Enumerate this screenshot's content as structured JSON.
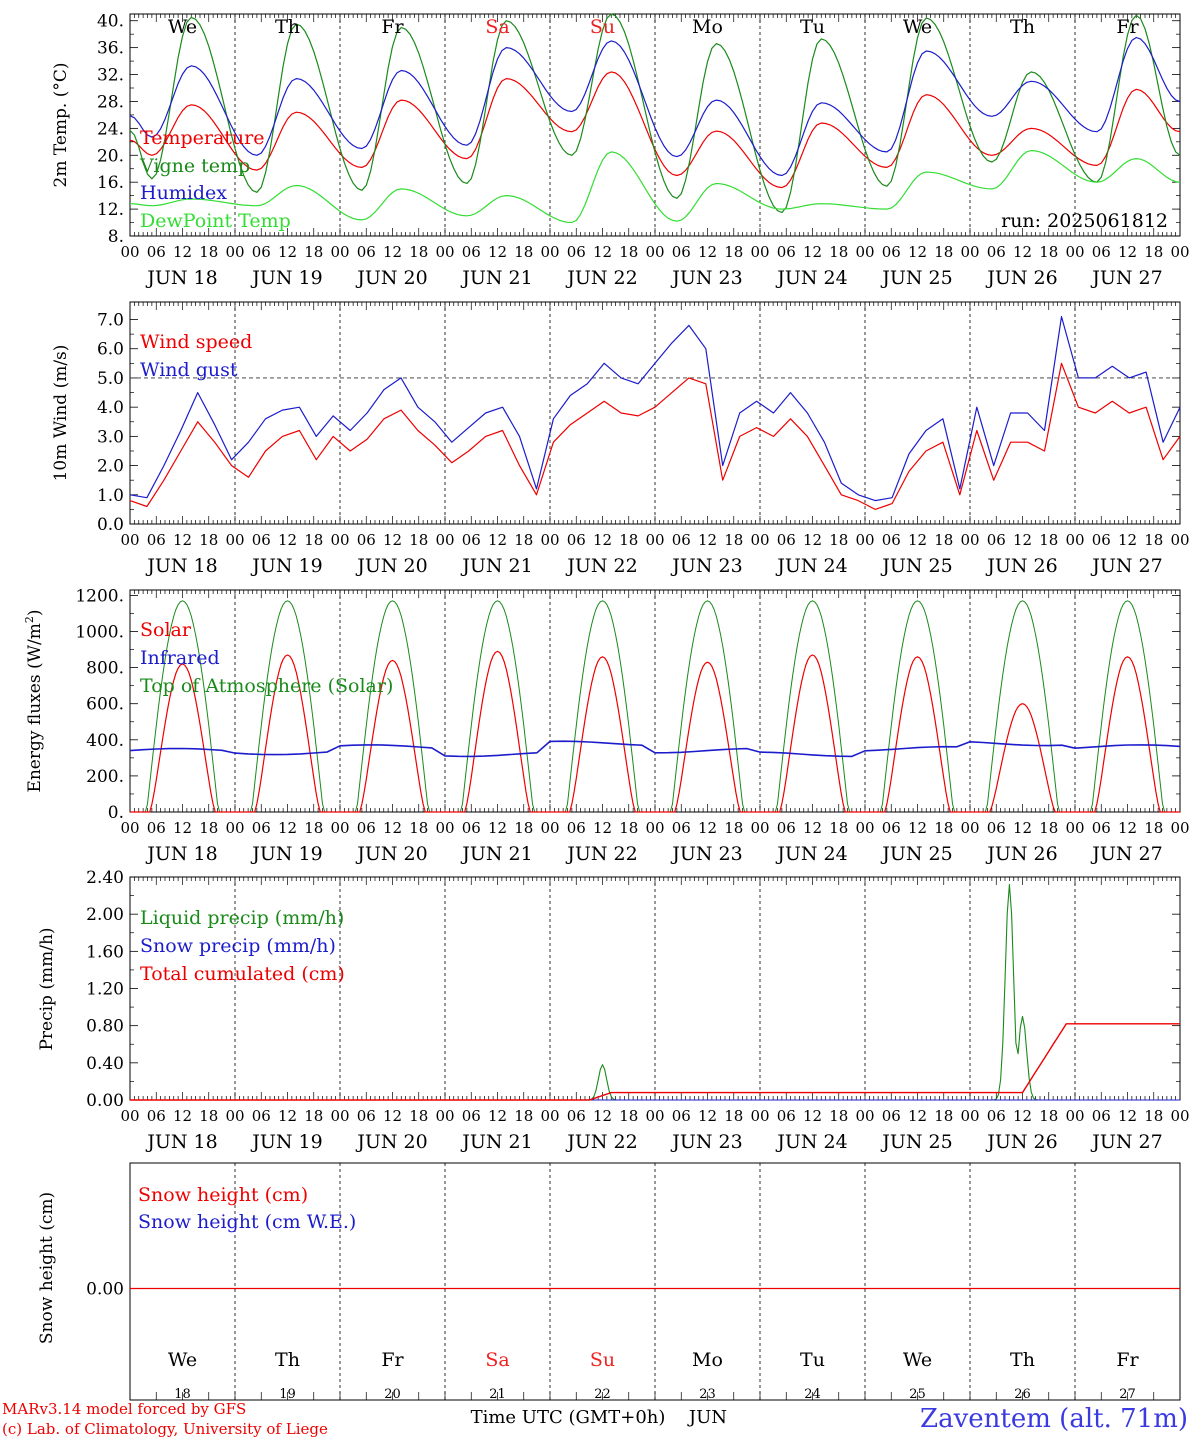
{
  "panels": {
    "temp": {
      "ylabel": "2m Temp. (°C)",
      "yticks": [
        "8.",
        "12.",
        "16.",
        "20.",
        "24.",
        "28.",
        "32.",
        "36.",
        "40."
      ],
      "ylim": [
        8,
        41
      ],
      "legend": [
        "Temperature",
        "Vigne temp",
        "Humidex",
        "DewPoint Temp"
      ],
      "run_label": "run: 2025061812",
      "weekdays": [
        "We",
        "Th",
        "Fr",
        "Sa",
        "Su",
        "Mo",
        "Tu",
        "We",
        "Th",
        "Fr"
      ]
    },
    "wind": {
      "ylabel": "10m Wind (m/s)",
      "yticks": [
        "0.0",
        "1.0",
        "2.0",
        "3.0",
        "4.0",
        "5.0",
        "6.0",
        "7.0"
      ],
      "ylim": [
        0,
        7.6
      ],
      "legend": [
        "Wind speed",
        "Wind gust"
      ],
      "reference_line": 5.0
    },
    "energy": {
      "ylabel": "Energy fluxes (W/m²)",
      "yticks": [
        "0.",
        "200.",
        "400.",
        "600.",
        "800.",
        "1000.",
        "1200."
      ],
      "ylim": [
        0,
        1230
      ],
      "legend": [
        "Solar",
        "Infrared",
        "Top of Atmosphere (Solar)"
      ]
    },
    "precip": {
      "ylabel": "Precip (mm/h)",
      "yticks": [
        "0.00",
        "0.40",
        "0.80",
        "1.20",
        "1.60",
        "2.00",
        "2.40"
      ],
      "ylim": [
        0,
        2.4
      ],
      "legend": [
        "Liquid precip (mm/h)",
        "Snow precip (mm/h)",
        "Total cumulated (cm)"
      ]
    },
    "snow": {
      "ylabel": "Snow height (cm)",
      "yticks": [
        "0.00"
      ],
      "legend": [
        "Snow height (cm)",
        "Snow height (cm W.E.)"
      ],
      "weekdays": [
        "We",
        "Th",
        "Fr",
        "Sa",
        "Su",
        "Mo",
        "Tu",
        "We",
        "Th",
        "Fr"
      ],
      "daynums": [
        "18",
        "19",
        "20",
        "21",
        "22",
        "23",
        "24",
        "25",
        "26",
        "27"
      ]
    }
  },
  "hour_ticks": [
    "00",
    "06",
    "12",
    "18"
  ],
  "last_hour_tick": "00",
  "date_labels": [
    "JUN 18",
    "JUN 19",
    "JUN 20",
    "JUN 21",
    "JUN 22",
    "JUN 23",
    "JUN 24",
    "JUN 25",
    "JUN 26",
    "JUN 27"
  ],
  "footer": {
    "model_line": "MARv3.14 model forced by GFS",
    "copyright_line": "(c) Lab. of Climatology, University of Liege",
    "time_axis_label": "Time UTC (GMT+0h)",
    "month_label": "JUN",
    "station": "Zaventem (alt. 71m)"
  },
  "colors": {
    "red": "#ee0000",
    "green": "#1a8a1a",
    "blue": "#1c1ccc",
    "light_green": "#33dd33",
    "weekend": "#ee2222",
    "station": "#3a3ae0",
    "frame": "#000000"
  },
  "chart_data": [
    {
      "type": "line",
      "title": "",
      "ylabel": "2m Temp. (°C)",
      "ylim": [
        8,
        41
      ],
      "x": [
        "Jun 18",
        "Jun 19",
        "Jun 20",
        "Jun 21",
        "Jun 22",
        "Jun 23",
        "Jun 24",
        "Jun 25",
        "Jun 26",
        "Jun 27"
      ],
      "series": [
        {
          "name": "Temperature",
          "daily_min": [
            20.0,
            17.8,
            18.2,
            19.5,
            23.5,
            17.0,
            15.2,
            18.2,
            20.0,
            18.5
          ],
          "daily_max": [
            27.5,
            26.4,
            28.2,
            31.4,
            32.4,
            23.6,
            24.8,
            29.0,
            24.0,
            29.8
          ],
          "end_value": 23.5
        },
        {
          "name": "Vigne temp",
          "daily_min": [
            16.5,
            14.5,
            14.8,
            15.8,
            20.0,
            13.6,
            11.5,
            15.4,
            19.0,
            16.0
          ],
          "daily_max": [
            40.5,
            39.5,
            39.0,
            40.0,
            41.0,
            36.6,
            37.3,
            40.4,
            32.4,
            40.8
          ],
          "end_value": 20.0
        },
        {
          "name": "Humidex",
          "daily_min": [
            22.7,
            20.0,
            21.0,
            21.5,
            26.5,
            19.8,
            17.0,
            20.5,
            25.8,
            23.5
          ],
          "daily_max": [
            33.3,
            31.4,
            32.6,
            36.0,
            37.0,
            28.2,
            27.8,
            35.5,
            31.0,
            37.5
          ],
          "end_value": 28.0
        },
        {
          "name": "DewPoint Temp",
          "daily_min": [
            12.5,
            12.5,
            10.4,
            11.0,
            10.0,
            10.2,
            12.0,
            12.0,
            15.0,
            16.0
          ],
          "daily_max": [
            13.5,
            15.5,
            15.0,
            14.0,
            20.5,
            15.8,
            12.8,
            17.5,
            20.7,
            19.5
          ],
          "end_value": 16.0
        }
      ]
    },
    {
      "type": "line",
      "title": "",
      "ylabel": "10m Wind (m/s)",
      "ylim": [
        0,
        7.6
      ],
      "x_step_hours": 6,
      "x_start": "2025-06-18 00:00",
      "series": [
        {
          "name": "Wind speed",
          "values": [
            0.8,
            0.6,
            1.5,
            2.5,
            3.5,
            2.8,
            2.0,
            1.6,
            2.5,
            3.0,
            3.2,
            2.2,
            3.0,
            2.5,
            2.9,
            3.6,
            3.9,
            3.2,
            2.7,
            2.1,
            2.5,
            3.0,
            3.2,
            2.0,
            1.0,
            2.8,
            3.4,
            3.8,
            4.2,
            3.8,
            3.7,
            4.0,
            4.5,
            5.0,
            4.8,
            1.5,
            3.0,
            3.3,
            3.0,
            3.6,
            3.0,
            2.0,
            1.0,
            0.8,
            0.5,
            0.7,
            1.8,
            2.5,
            2.8,
            1.0,
            3.2,
            1.5,
            2.8,
            2.8,
            2.5,
            5.5,
            4.0,
            3.8,
            4.2,
            3.8,
            4.0,
            2.2,
            3.0
          ]
        },
        {
          "name": "Wind gust",
          "values": [
            1.0,
            0.9,
            2.0,
            3.2,
            4.5,
            3.4,
            2.2,
            2.8,
            3.6,
            3.9,
            4.0,
            3.0,
            3.7,
            3.2,
            3.8,
            4.6,
            5.0,
            4.0,
            3.5,
            2.8,
            3.3,
            3.8,
            4.0,
            3.0,
            1.2,
            3.6,
            4.4,
            4.8,
            5.5,
            5.0,
            4.8,
            5.5,
            6.2,
            6.8,
            6.0,
            2.0,
            3.8,
            4.2,
            3.8,
            4.5,
            3.8,
            2.8,
            1.4,
            1.0,
            0.8,
            0.9,
            2.4,
            3.2,
            3.6,
            1.2,
            4.0,
            2.0,
            3.8,
            3.8,
            3.2,
            7.1,
            5.0,
            5.0,
            5.4,
            5.0,
            5.2,
            2.8,
            4.0
          ]
        }
      ]
    },
    {
      "type": "line",
      "title": "",
      "ylabel": "Energy fluxes (W/m²)",
      "ylim": [
        0,
        1230
      ],
      "x": [
        "Jun 18",
        "Jun 19",
        "Jun 20",
        "Jun 21",
        "Jun 22",
        "Jun 23",
        "Jun 24",
        "Jun 25",
        "Jun 26",
        "Jun 27"
      ],
      "series": [
        {
          "name": "Solar",
          "daily_peak": [
            820,
            870,
            840,
            890,
            860,
            830,
            870,
            860,
            600,
            860
          ]
        },
        {
          "name": "Infrared",
          "daily_mean": [
            340,
            330,
            360,
            320,
            380,
            340,
            320,
            350,
            380,
            360
          ]
        },
        {
          "name": "Top of Atmosphere (Solar)",
          "daily_peak": [
            1170,
            1170,
            1170,
            1170,
            1170,
            1170,
            1170,
            1170,
            1170,
            1170
          ]
        }
      ]
    },
    {
      "type": "line",
      "title": "",
      "ylabel": "Precip (mm/h)",
      "ylim": [
        0,
        2.4
      ],
      "series": [
        {
          "name": "Liquid precip (mm/h)",
          "events": [
            {
              "time": "2025-06-22 12:00",
              "peak": 0.38
            },
            {
              "time": "2025-06-26 09:00",
              "peak": 2.32
            },
            {
              "time": "2025-06-26 12:00",
              "peak": 0.9
            }
          ]
        },
        {
          "name": "Snow precip (mm/h)",
          "values": [
            0.0
          ]
        },
        {
          "name": "Total cumulated (cm)",
          "steps": [
            {
              "from": "2025-06-22 12:00",
              "value": 0.08
            },
            {
              "from": "2025-06-26 15:00",
              "value": 0.82
            }
          ]
        }
      ]
    },
    {
      "type": "line",
      "title": "",
      "ylabel": "Snow height (cm)",
      "series": [
        {
          "name": "Snow height (cm)",
          "values": [
            0.0
          ]
        },
        {
          "name": "Snow height (cm W.E.)",
          "values": [
            0.0
          ]
        }
      ]
    }
  ]
}
